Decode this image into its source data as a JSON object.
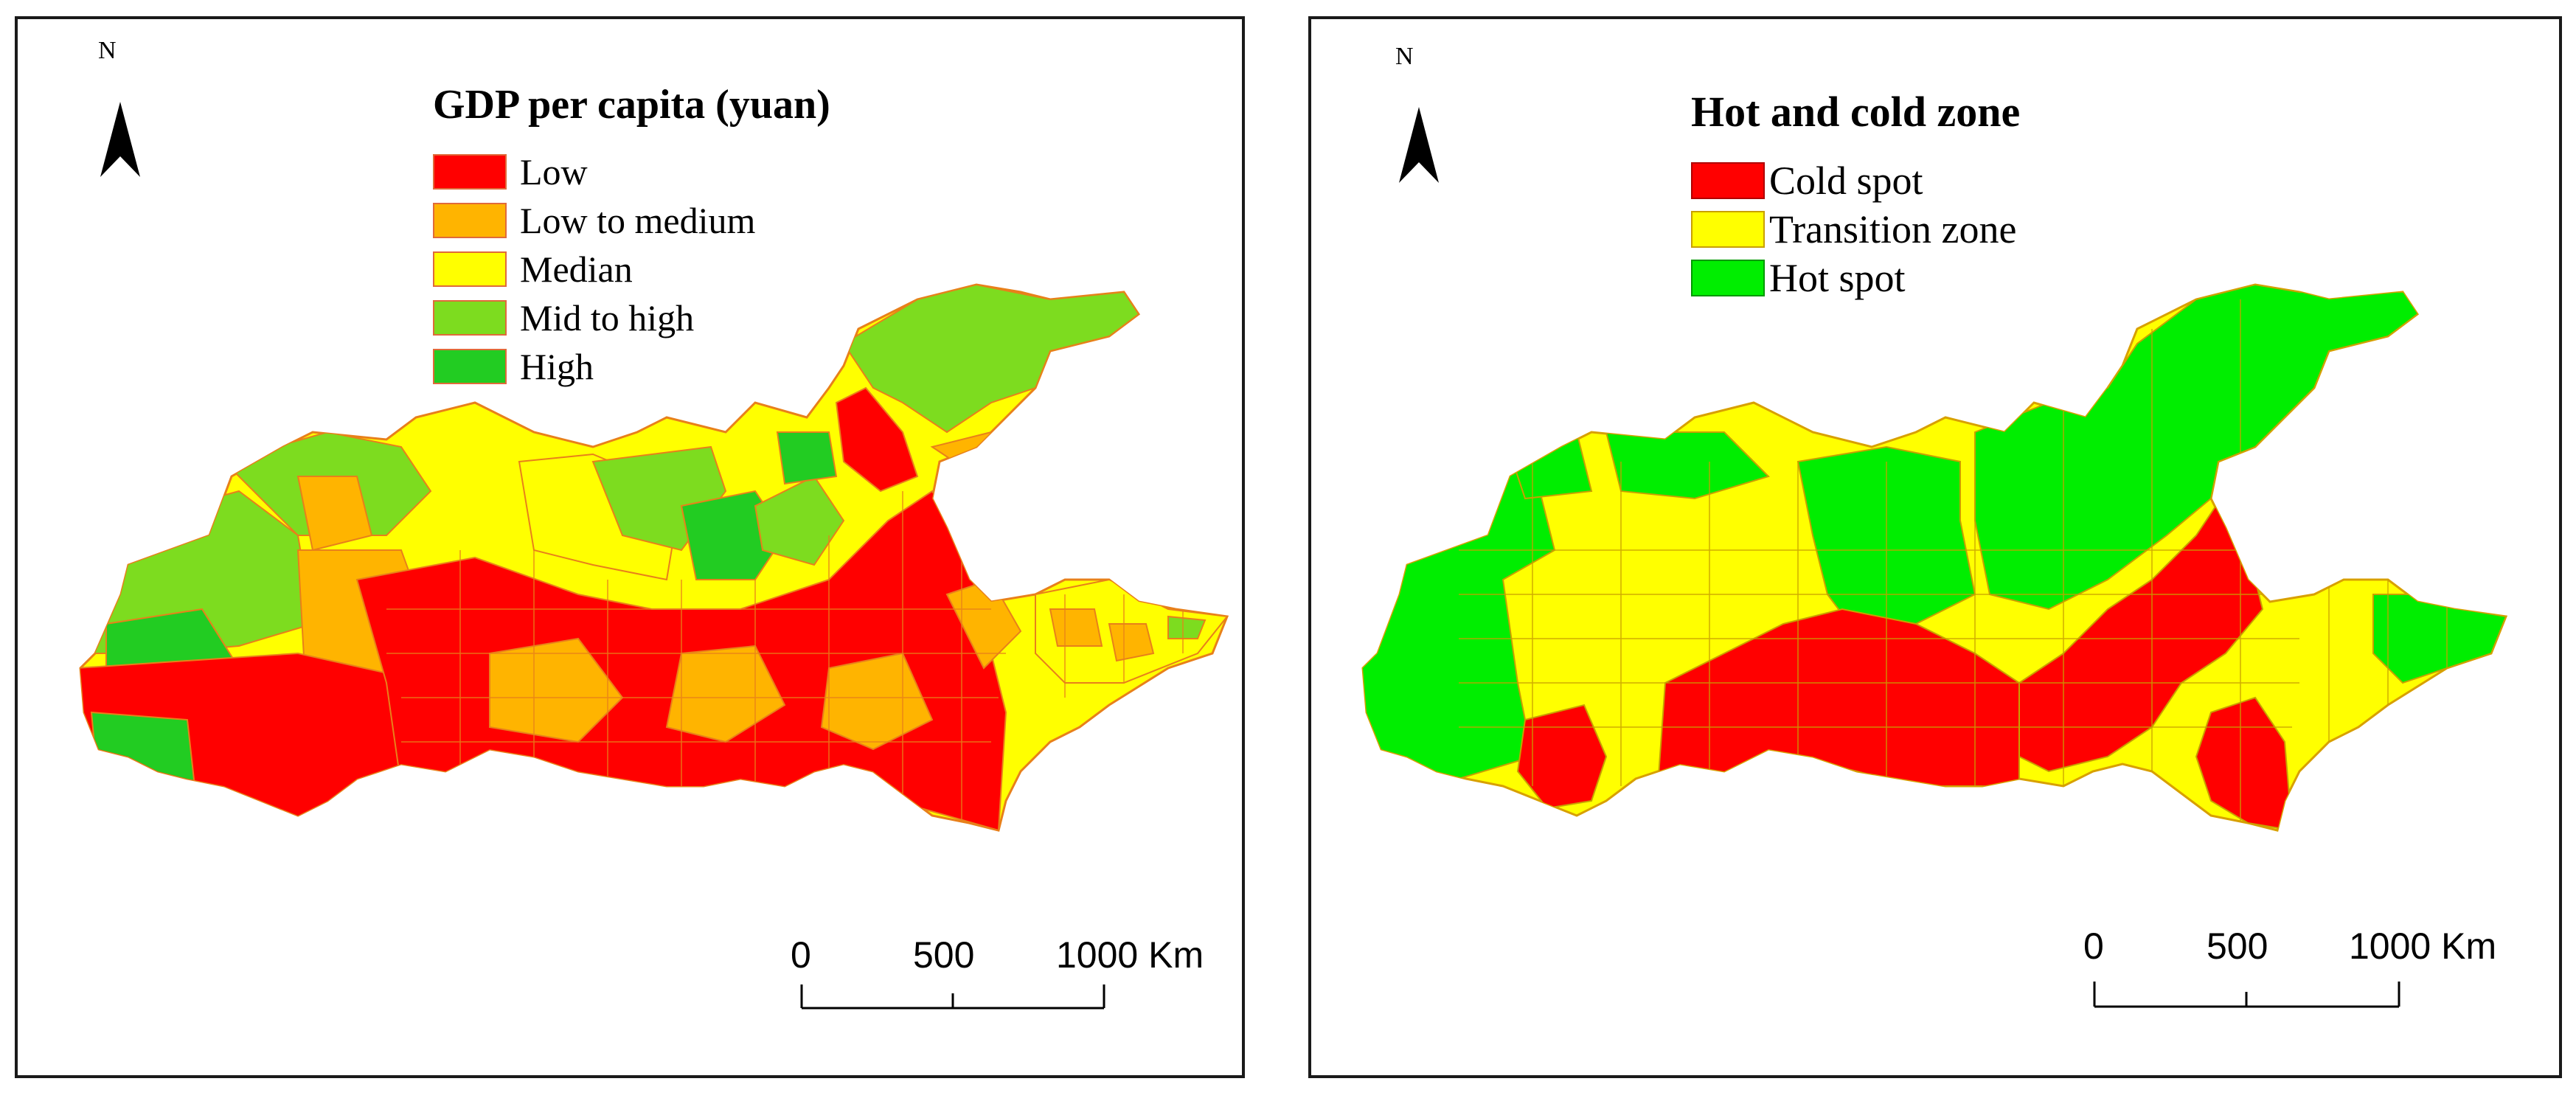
{
  "maps": [
    {
      "north_label": "N",
      "legend_title": "GDP per capita (yuan)",
      "legend": [
        {
          "label": "Low",
          "color": "#ff0000"
        },
        {
          "label": "Low to medium",
          "color": "#ffb400"
        },
        {
          "label": "Median",
          "color": "#ffff00"
        },
        {
          "label": "Mid to high",
          "color": "#7ddc1f"
        },
        {
          "label": "High",
          "color": "#22cc22"
        }
      ],
      "scale": {
        "labels": [
          "0",
          "500",
          "1000 Km"
        ]
      }
    },
    {
      "north_label": "N",
      "legend_title": "Hot and cold zone",
      "legend": [
        {
          "label": "Cold spot",
          "color": "#ff0000"
        },
        {
          "label": "Transition zone",
          "color": "#ffff00"
        },
        {
          "label": "Hot spot",
          "color": "#00ee00"
        }
      ],
      "scale": {
        "labels": [
          "0",
          "500",
          "1000 Km"
        ]
      }
    }
  ]
}
